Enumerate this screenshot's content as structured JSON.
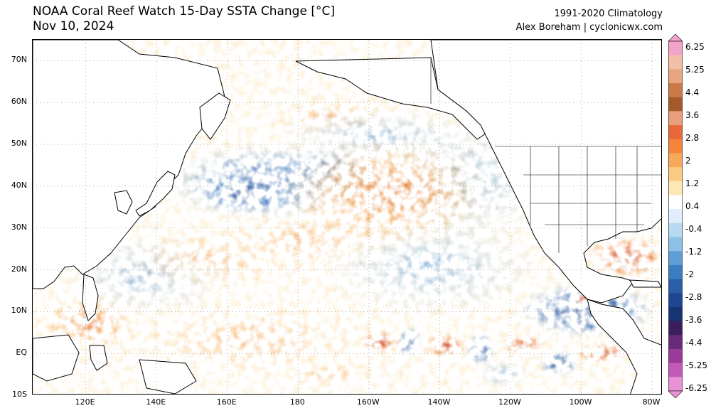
{
  "header": {
    "title_line1": "NOAA Coral Reef Watch 15-Day SSTA Change [°C]",
    "title_line2": "Nov 10, 2024",
    "climatology": "1991-2020 Climatology",
    "credit": "Alex Boreham | cyclonicwx.com"
  },
  "map": {
    "lon_range": [
      105,
      283
    ],
    "lat_range": [
      -10,
      75
    ],
    "lat_ticks": [
      {
        "value": 70,
        "label": "70N"
      },
      {
        "value": 60,
        "label": "60N"
      },
      {
        "value": 50,
        "label": "50N"
      },
      {
        "value": 40,
        "label": "40N"
      },
      {
        "value": 30,
        "label": "30N"
      },
      {
        "value": 20,
        "label": "20N"
      },
      {
        "value": 10,
        "label": "10N"
      },
      {
        "value": 0,
        "label": "EQ"
      },
      {
        "value": -10,
        "label": "10S"
      }
    ],
    "lon_ticks": [
      {
        "value": 120,
        "label": "120E"
      },
      {
        "value": 140,
        "label": "140E"
      },
      {
        "value": 160,
        "label": "160E"
      },
      {
        "value": 180,
        "label": "180"
      },
      {
        "value": 200,
        "label": "160W"
      },
      {
        "value": 220,
        "label": "140W"
      },
      {
        "value": 240,
        "label": "120W"
      },
      {
        "value": 260,
        "label": "100W"
      },
      {
        "value": 280,
        "label": "80W"
      }
    ],
    "colors": {
      "ocean_neutral": "#ffffff",
      "land": "#ffffff",
      "coast": "#000000",
      "grid": "#888888"
    }
  },
  "colorbar": {
    "labels": [
      "6.25",
      "5.25",
      "4.4",
      "3.6",
      "2.8",
      "2",
      "1.2",
      "0.4",
      "-0.4",
      "-1.2",
      "-2",
      "-2.8",
      "-3.6",
      "-4.4",
      "-5.25",
      "-6.25"
    ],
    "colors": [
      "#f4a3c8",
      "#f3bfa8",
      "#e8a57e",
      "#c97a47",
      "#a55a2b",
      "#e9a07a",
      "#e8683a",
      "#f3843a",
      "#f7a85a",
      "#fbcb82",
      "#fde8b3",
      "#ffffff",
      "#dfeefa",
      "#b8d9f2",
      "#8dc1e8",
      "#5e9fd6",
      "#3b7dc2",
      "#2a5ea8",
      "#1f4690",
      "#173474",
      "#3a1f5c",
      "#6a2a7a",
      "#9a3a9a",
      "#c45ab8",
      "#e892d6"
    ]
  }
}
